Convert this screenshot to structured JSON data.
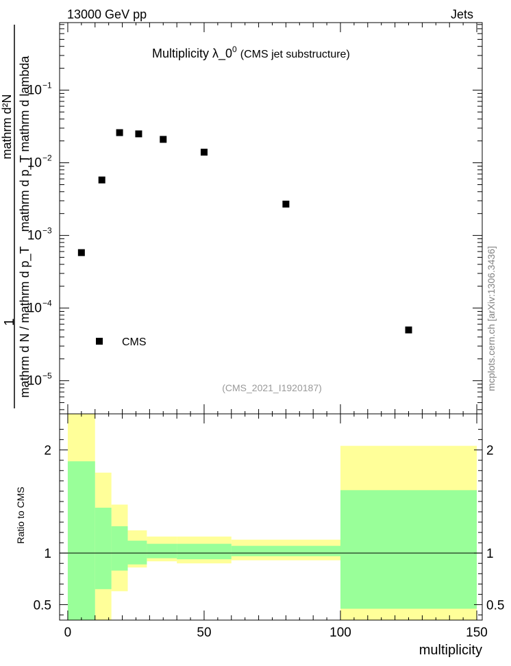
{
  "header": {
    "left": "13000 GeV pp",
    "right": "Jets"
  },
  "side_label": "mcplots.cern.ch [arXiv:1306.3436]",
  "chart_data": [
    {
      "type": "scatter",
      "title": "Multiplicity  λ_0",
      "title_superscript": "0",
      "subtitle": "(CMS jet substructure)",
      "analysis_label": "(CMS_2021_I1920187)",
      "ylabel_numerator": "mathrm d²N",
      "ylabel_denominator": "mathrm d N / mathrm d p_T",
      "ylabel_denominator_extra": "mathrm d p_T mathrm d lambda",
      "ylabel_prefix": "1",
      "y_scale": "log",
      "ylim": [
        3.5e-06,
        0.85
      ],
      "y_ticks": [
        "10^-5",
        "10^-4",
        "10^-3",
        "10^-2",
        "10^-1"
      ],
      "xlim": [
        -3,
        152
      ],
      "legend_placement": "bottom-left",
      "series": [
        {
          "name": "CMS",
          "color": "#000000",
          "marker": "square",
          "x": [
            5,
            12.5,
            19,
            26,
            35,
            50,
            80,
            125
          ],
          "y": [
            0.00058,
            0.0058,
            0.026,
            0.025,
            0.021,
            0.014,
            0.0027,
            5e-05
          ]
        }
      ]
    },
    {
      "type": "area",
      "ylabel": "Ratio to CMS",
      "xlabel": "multiplicity",
      "xlim": [
        -3,
        152
      ],
      "ylim": [
        0.35,
        2.35
      ],
      "x_ticks": [
        0,
        50,
        100,
        150
      ],
      "y_ticks": [
        0.5,
        1,
        2
      ],
      "reference_line": 1,
      "bin_edges": [
        0,
        10,
        16,
        22,
        29,
        40,
        60,
        100,
        150
      ],
      "bands": [
        {
          "color": "#ffff99",
          "low": [
            0.35,
            0.35,
            0.63,
            0.86,
            0.92,
            0.9,
            0.93,
            0.35
          ],
          "high": [
            2.35,
            1.78,
            1.47,
            1.22,
            1.16,
            1.16,
            1.13,
            2.04
          ]
        },
        {
          "color": "#99ff99",
          "low": [
            0.35,
            0.65,
            0.83,
            0.89,
            0.95,
            0.94,
            0.97,
            0.46
          ],
          "high": [
            1.89,
            1.44,
            1.26,
            1.12,
            1.09,
            1.09,
            1.07,
            1.61
          ]
        }
      ]
    }
  ]
}
